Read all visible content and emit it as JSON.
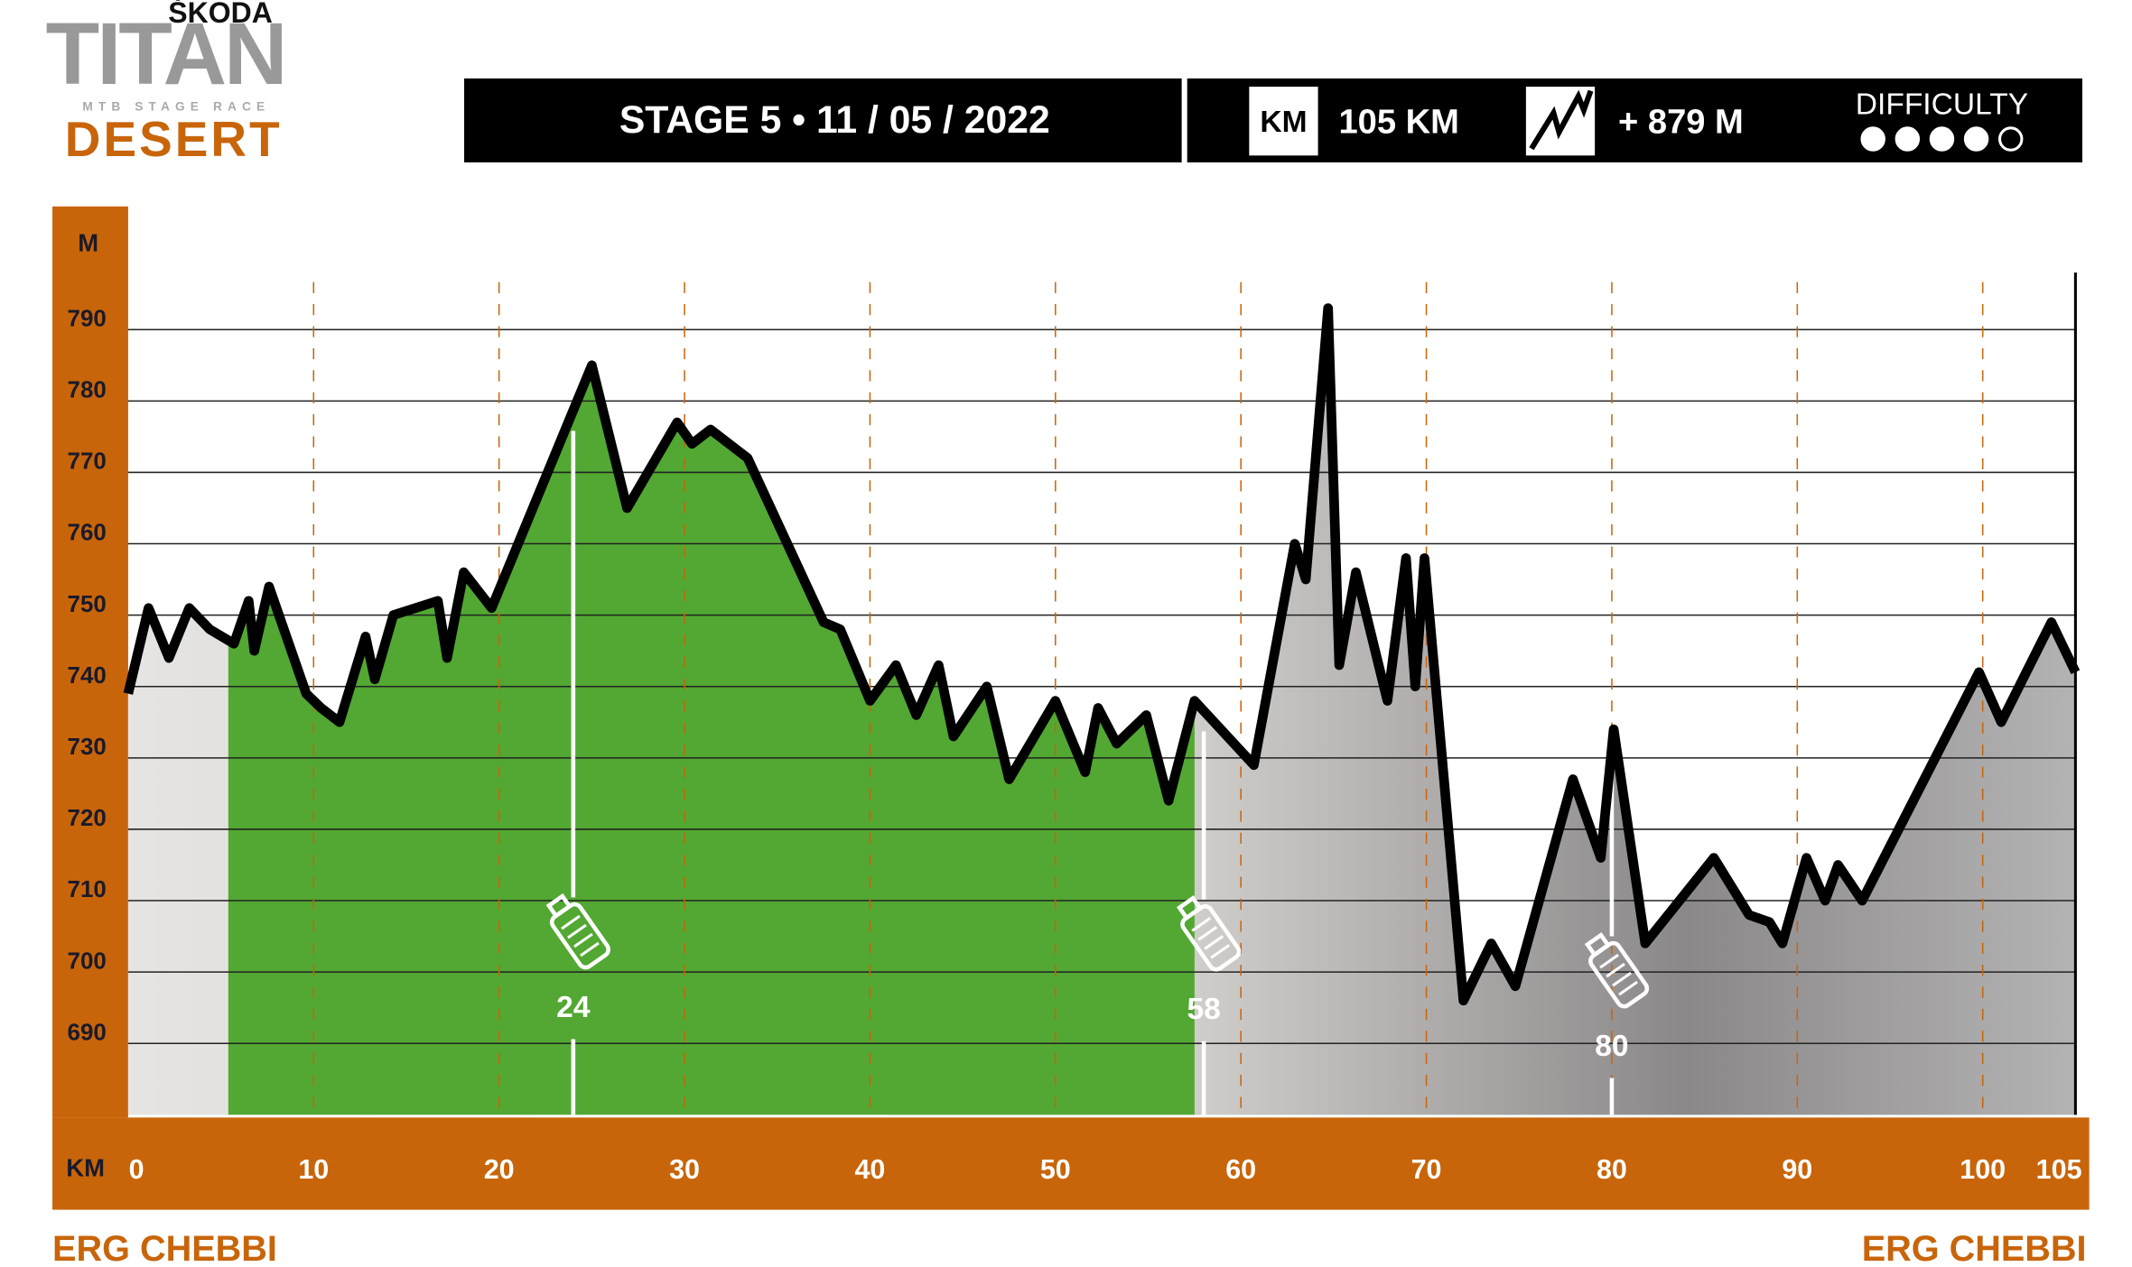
{
  "brand": {
    "sponsor": "ŠKODA",
    "name": "TITAN",
    "tagline": "MTB STAGE RACE",
    "edition": "DESERT"
  },
  "header": {
    "stage": "STAGE 5 • 11  / 05 / 2022",
    "km_icon": "KM",
    "distance": "105 KM",
    "elevation_gain": "+ 879 M",
    "difficulty_label": "DIFFICULTY",
    "difficulty": {
      "value": 4,
      "max": 5
    }
  },
  "chart_data": {
    "type": "area",
    "y_axis_label": "M",
    "x_axis_label": "KM",
    "start_label": "ERG CHEBBI",
    "end_label": "ERG CHEBBI",
    "x": [
      0,
      1.1,
      2.2,
      3.3,
      4.4,
      5.7,
      6.5,
      6.8,
      7.6,
      9.6,
      10.4,
      11.4,
      12.8,
      13.3,
      14.3,
      16.7,
      17.2,
      18.1,
      19.6,
      25.0,
      26.9,
      29.6,
      30.4,
      31.4,
      33.4,
      37.5,
      38.4,
      40.0,
      41.4,
      42.5,
      43.7,
      44.5,
      46.3,
      47.5,
      50.0,
      51.6,
      52.3,
      53.3,
      54.9,
      56.1,
      57.5,
      60.7,
      62.9,
      63.5,
      64.7,
      65.3,
      66.2,
      67.9,
      68.9,
      69.4,
      69.9,
      72.0,
      73.5,
      74.8,
      77.9,
      79.4,
      80.1,
      81.8,
      85.5,
      87.4,
      88.5,
      89.2,
      90.5,
      91.5,
      92.2,
      93.5,
      99.8,
      101.0,
      103.7,
      105
    ],
    "values": [
      739,
      751,
      744,
      751,
      748,
      746,
      752,
      745,
      754,
      739,
      737,
      735,
      747,
      741,
      750,
      752,
      744,
      756,
      751,
      785,
      765,
      777,
      774,
      776,
      772,
      749,
      748,
      738,
      743,
      736,
      743,
      733,
      740,
      727,
      738,
      728,
      737,
      732,
      736,
      724,
      738,
      729,
      760,
      755,
      793,
      743,
      756,
      738,
      758,
      740,
      758,
      696,
      704,
      698,
      727,
      716,
      734,
      704,
      716,
      708,
      707,
      704,
      716,
      710,
      715,
      710,
      742,
      735,
      749,
      742
    ],
    "highlight_range": [
      5.4,
      57.5
    ],
    "feed_zones": [
      24,
      58,
      80
    ],
    "xlim": [
      0,
      105
    ],
    "xticks": [
      0,
      10,
      20,
      30,
      40,
      50,
      60,
      70,
      80,
      90,
      100,
      105
    ],
    "ylim": [
      680,
      798
    ],
    "yticks": [
      690,
      700,
      710,
      720,
      730,
      740,
      750,
      760,
      770,
      780,
      790
    ],
    "line_color": "#000000",
    "highlight_color": "#52a832",
    "axis_color": "#c8650a",
    "grid": true
  }
}
